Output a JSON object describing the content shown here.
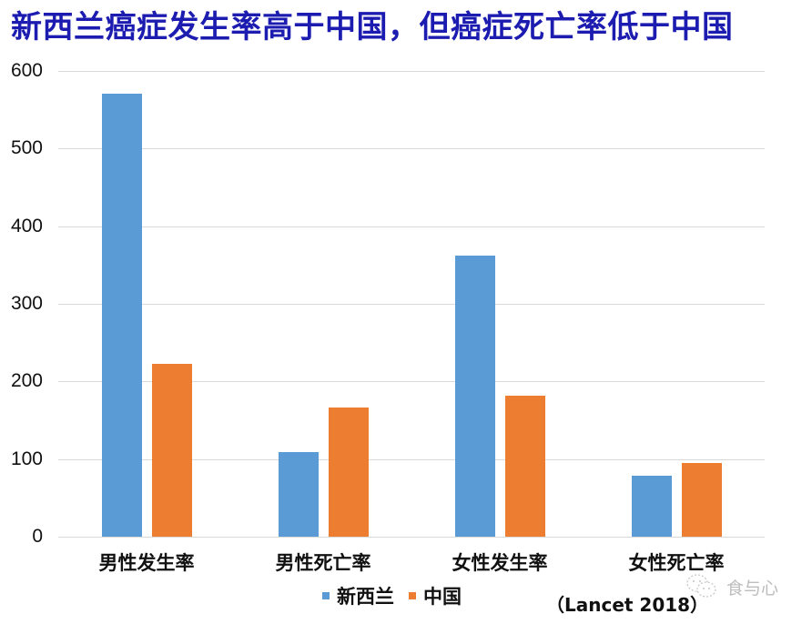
{
  "title": "新西兰癌症发生率高于中国，但癌症死亡率低于中国",
  "source_note": "（Lancet 2018）",
  "watermark": {
    "icon": "wechat-chat-bubbles-icon",
    "text": "食与心"
  },
  "colors": {
    "title": "#1c1cb0",
    "new_zealand": "#5b9bd5",
    "china": "#ed7d31",
    "grid": "#d9d9d9"
  },
  "chart_data": {
    "type": "bar",
    "title": "新西兰癌症发生率高于中国，但癌症死亡率低于中国",
    "xlabel": "",
    "ylabel": "",
    "categories": [
      "男性发生率",
      "男性死亡率",
      "女性发生率",
      "女性死亡率"
    ],
    "series": [
      {
        "name": "新西兰",
        "color": "#5b9bd5",
        "values": [
          571,
          109,
          362,
          79
        ]
      },
      {
        "name": "中国",
        "color": "#ed7d31",
        "values": [
          223,
          166,
          182,
          95
        ]
      }
    ],
    "ylim": [
      0,
      600
    ],
    "yticks": [
      0,
      100,
      200,
      300,
      400,
      500,
      600
    ],
    "grid": true,
    "legend_position": "bottom",
    "annotations": [
      "（Lancet 2018）"
    ]
  },
  "yaxis": {
    "ticks": [
      "0",
      "100",
      "200",
      "300",
      "400",
      "500",
      "600"
    ]
  },
  "legend": [
    {
      "label": "新西兰",
      "color": "#5b9bd5"
    },
    {
      "label": "中国",
      "color": "#ed7d31"
    }
  ]
}
